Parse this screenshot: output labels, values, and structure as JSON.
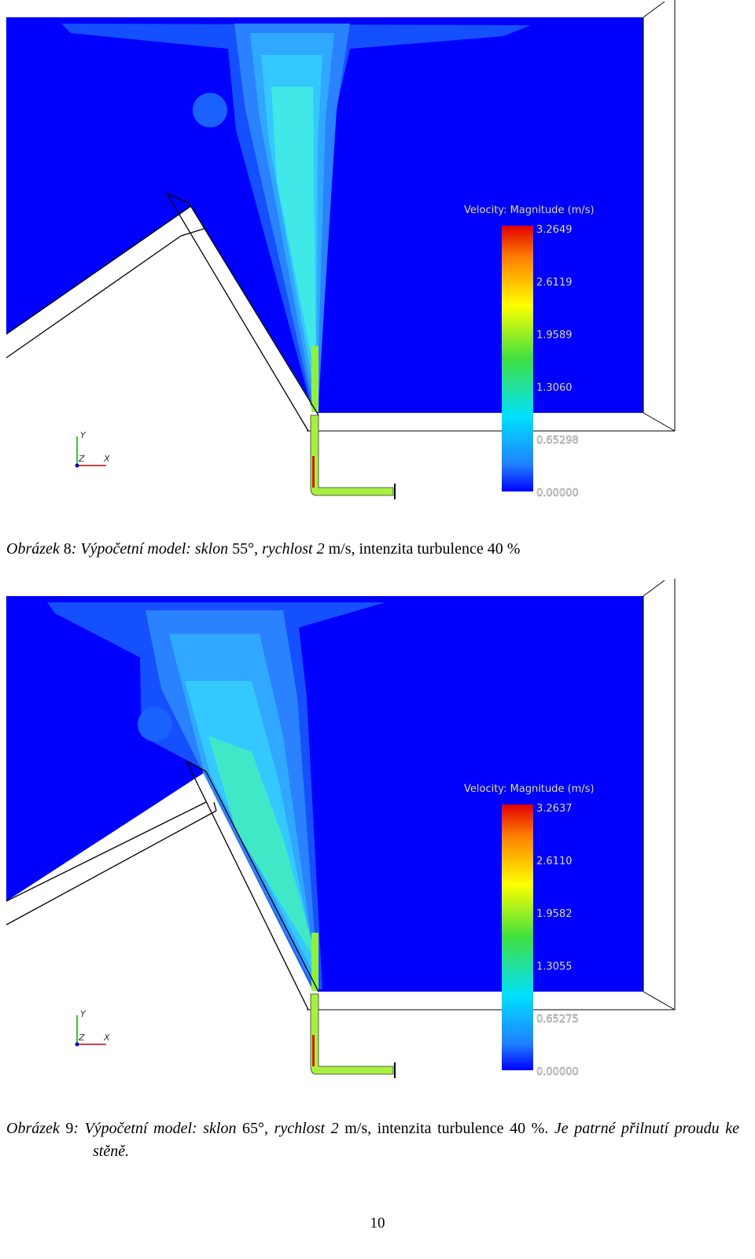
{
  "figures": [
    {
      "legend_title": "Velocity: Magnitude (m/s)",
      "legend_ticks": [
        "3.2649",
        "2.6119",
        "1.9589",
        "1.3060",
        "0.65298",
        "0.00000"
      ],
      "axes": [
        "Y",
        "Z",
        "X"
      ],
      "caption": [
        {
          "text": "Obrázek",
          "italic": true
        },
        {
          "text": " 8",
          "italic": false
        },
        {
          "text": ": Výpočetní model: sklon ",
          "italic": true
        },
        {
          "text": "55°, ",
          "italic": false
        },
        {
          "text": "rychlost 2 ",
          "italic": true
        },
        {
          "text": "m/s, intenzita turbulence 40 %",
          "italic": false
        }
      ]
    },
    {
      "legend_title": "Velocity: Magnitude (m/s)",
      "legend_ticks": [
        "3.2637",
        "2.6110",
        "1.9582",
        "1.3055",
        "0.65275",
        "0.00000"
      ],
      "axes": [
        "Y",
        "Z",
        "X"
      ],
      "caption": [
        {
          "text": "Obrázek",
          "italic": true
        },
        {
          "text": " 9",
          "italic": false
        },
        {
          "text": ": Výpočetní model: sklon ",
          "italic": true
        },
        {
          "text": "65°, ",
          "italic": false
        },
        {
          "text": "rychlost 2 ",
          "italic": true
        },
        {
          "text": "m/s, intenzita turbulence 40 %. ",
          "italic": false
        },
        {
          "text": "Je patrné přilnutí proudu ke stěně.",
          "italic": true
        }
      ]
    }
  ],
  "page_number": "10"
}
